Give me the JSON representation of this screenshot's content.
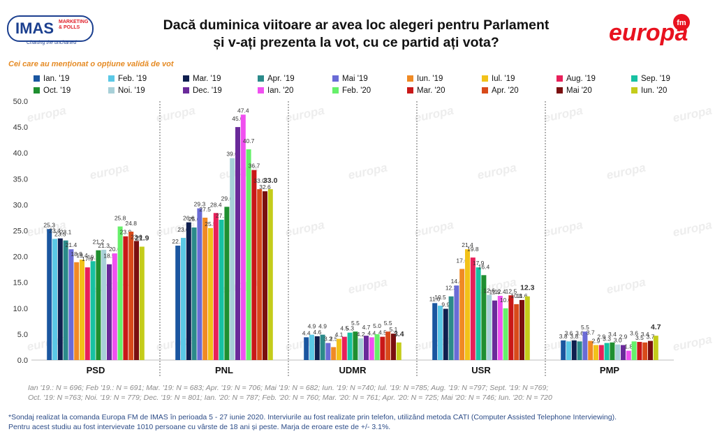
{
  "header": {
    "imas_logo_text": "IMAS",
    "imas_logo_sub1": "MARKETING",
    "imas_logo_sub2": "& POLLS",
    "imas_tagline": "Charting the uncharted",
    "title_line1": "Dacă duminica viitoare ar avea loc alegeri pentru Parlament",
    "title_line2": "și v-ați prezenta la vot, cu ce partid ați vota?",
    "europa_logo_text": "europa",
    "europa_logo_fm": "fm",
    "subtitle": "Cei care au menționat o opțiune validă de vot",
    "watermark_text": "europa"
  },
  "colors": {
    "series": [
      "#1a56a0",
      "#5bc8e6",
      "#0f1f4f",
      "#2b8a8a",
      "#6a6bd6",
      "#f08a24",
      "#f2c219",
      "#e8205a",
      "#17c1a2",
      "#1f8f30",
      "#a8d0d8",
      "#6a2a9a",
      "#f050f0",
      "#66f06a",
      "#c91818",
      "#d84a1a",
      "#7a0f0f",
      "#c4cc1a"
    ],
    "axis_text": "#333333",
    "separator": "#9a9a9a",
    "grid": "#e6e6e6",
    "accent_logo": "#e8121f"
  },
  "chart_data": {
    "type": "bar",
    "categories": [
      "PSD",
      "PNL",
      "UDMR",
      "USR",
      "PMP"
    ],
    "ylim": [
      0,
      50
    ],
    "yticks": [
      "0.0",
      "5.0",
      "10.0",
      "15.0",
      "20.0",
      "25.0",
      "30.0",
      "35.0",
      "40.0",
      "45.0",
      "50.0"
    ],
    "grid": false,
    "legend_position": "top",
    "series": [
      {
        "name": "Ian. '19",
        "values": [
          25.3,
          22.1,
          4.4,
          11.0,
          3.8
        ]
      },
      {
        "name": "Feb. '19",
        "values": [
          23.4,
          23.6,
          4.9,
          10.5,
          3.6
        ]
      },
      {
        "name": "Mar. '19",
        "values": [
          23.5,
          26.6,
          4.6,
          9.9,
          3.8
        ]
      },
      {
        "name": "Apr. '19",
        "values": [
          23.1,
          25.6,
          4.9,
          12.3,
          3.6
        ]
      },
      {
        "name": "Mai '19",
        "values": [
          21.4,
          29.3,
          3.3,
          14.4,
          5.5
        ]
      },
      {
        "name": "Iun. '19",
        "values": [
          18.9,
          27.5,
          2.5,
          17.6,
          3.7
        ]
      },
      {
        "name": "Iul. '19",
        "values": [
          19.4,
          25.5,
          4.1,
          21.4,
          2.9
        ]
      },
      {
        "name": "Aug. '19",
        "values": [
          17.9,
          28.4,
          4.5,
          19.8,
          2.9
        ]
      },
      {
        "name": "Sep. '19",
        "values": [
          19.1,
          27.1,
          5.3,
          17.9,
          3.3
        ]
      },
      {
        "name": "Oct. '19",
        "values": [
          21.2,
          29.6,
          5.5,
          16.4,
          3.4
        ]
      },
      {
        "name": "Noi. '19",
        "values": [
          21.3,
          39.0,
          4.2,
          12.6,
          3.0
        ]
      },
      {
        "name": "Dec. '19",
        "values": [
          18.5,
          45.0,
          4.7,
          11.5,
          2.9
        ]
      },
      {
        "name": "Ian. '20",
        "values": [
          20.6,
          47.4,
          4.4,
          12.4,
          1.8
        ]
      },
      {
        "name": "Feb. '20",
        "values": [
          25.8,
          40.7,
          5.0,
          10.0,
          3.6
        ]
      },
      {
        "name": "Mar. '20",
        "values": [
          23.9,
          36.7,
          4.5,
          12.5,
          3.5
        ]
      },
      {
        "name": "Apr. '20",
        "values": [
          24.8,
          33.0,
          5.5,
          10.8,
          3.4
        ]
      },
      {
        "name": "Mai '20",
        "values": [
          23.0,
          32.6,
          5.1,
          11.6,
          3.7
        ]
      },
      {
        "name": "Iun. '20",
        "values": [
          21.9,
          33.0,
          3.4,
          12.3,
          4.7
        ]
      }
    ],
    "value_labels": [
      [
        "25.3",
        "22.1",
        "4.4",
        "11.0",
        "3.8"
      ],
      [
        "23.4",
        "23.6",
        "4.9",
        "10.5",
        "3.6"
      ],
      [
        "23.5",
        "26.6",
        "4.6",
        "9.9",
        "3.8"
      ],
      [
        "23.1",
        "25.6",
        "4.9",
        "12.3",
        "3.6"
      ],
      [
        "21.4",
        "29.3",
        "3.3",
        "14.4",
        "5.5"
      ],
      [
        "18.9",
        "27.5",
        "2.5",
        "17.6",
        "3.7"
      ],
      [
        "19.4",
        "25.5",
        "4.1",
        "21.4",
        "2.9"
      ],
      [
        "17.9",
        "28.4",
        "4.5",
        "19.8",
        "2.9"
      ],
      [
        "19.1",
        "27.1",
        "5.3",
        "17.9",
        "3.3"
      ],
      [
        "21.2",
        "29.6",
        "5.5",
        "16.4",
        "3.4"
      ],
      [
        "21.3",
        "39.0",
        "4.2",
        "12.6",
        "3.0"
      ],
      [
        "18.5",
        "45.0",
        "4.7",
        "11.5",
        "2.9"
      ],
      [
        "20.6",
        "47.4",
        "4.4",
        "12.4",
        "1.8"
      ],
      [
        "25.8",
        "40.7",
        "5.0",
        "10.0",
        "3.6"
      ],
      [
        "23.9",
        "36.7",
        "4.5",
        "12.5",
        "3.5"
      ],
      [
        "24.8",
        "33.0",
        "5.5",
        "10.8",
        "3.4"
      ],
      [
        "23.0",
        "32.6",
        "5.1",
        "11.6",
        "3.7"
      ],
      [
        "21.9",
        "33.0",
        "3.4",
        "12.3",
        "4.7"
      ]
    ]
  },
  "footnotes": {
    "samples_line1": "Ian '19.: N = 696; Feb '19.: N = 691; Mar. '19: N = 683; Apr. '19: N = 706; Mai '19: N = 682; Iun. '19: N =740; Iul. '19: N =785; Aug. '19: N =797; Sept. '19: N =769;",
    "samples_line2": "Oct. '19: N =763; Noi. '19: N = 779; Dec. '19: N = 801; Ian. '20: N = 787; Feb. '20: N = 760; Mar. '20: N = 761; Apr. '20: N = 725; Mai '20: N = 746; Iun. '20: N = 720",
    "method_line1": "*Sondaj realizat la comanda Europa FM de IMAS în perioada  5 - 27 iunie 2020. Interviurile au fost realizate prin telefon, utilizând metoda CATI (Computer Assisted Telephone Interviewing).",
    "method_line2": "Pentru acest studiu au fost intervievate 1010 persoane cu vârste de 18 ani și peste. Marja de eroare este de +/- 3.1%."
  }
}
